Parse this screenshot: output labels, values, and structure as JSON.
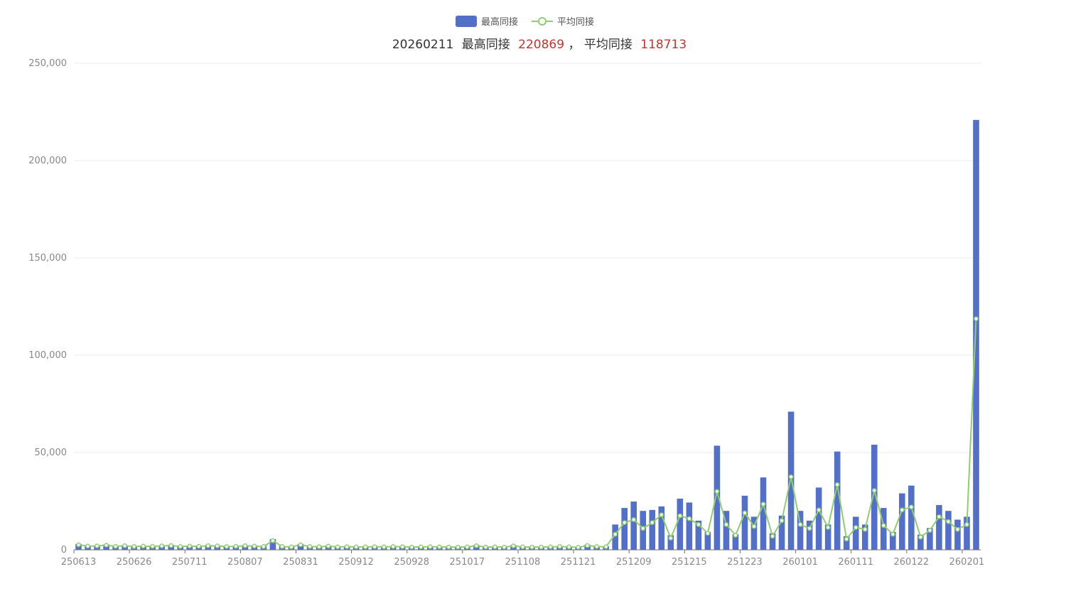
{
  "legend": {
    "bar_label": "最高同接",
    "line_label": "平均同接"
  },
  "title": {
    "date": "20260211",
    "max_label": "最高同接",
    "max_value": "220869",
    "separator": "，",
    "avg_label": "平均同接",
    "avg_value": "118713"
  },
  "colors": {
    "bar": "#5470c6",
    "line": "#91cc75",
    "highlight": "#c23531",
    "grid": "#e8ebf3",
    "axis": "#6e7079"
  },
  "chart_data": {
    "type": "bar",
    "title": "20260211 最高同接 220869，平均同接 118713",
    "ylim": [
      0,
      250000
    ],
    "y_ticks": [
      "0",
      "50,000",
      "100,000",
      "150,000",
      "200,000",
      "250,000"
    ],
    "x_tick_labels": [
      {
        "index": 0,
        "label": "250613"
      },
      {
        "index": 6,
        "label": "250626"
      },
      {
        "index": 12,
        "label": "250711"
      },
      {
        "index": 18,
        "label": "250807"
      },
      {
        "index": 24,
        "label": "250831"
      },
      {
        "index": 30,
        "label": "250912"
      },
      {
        "index": 36,
        "label": "250928"
      },
      {
        "index": 42,
        "label": "251017"
      },
      {
        "index": 48,
        "label": "251108"
      },
      {
        "index": 54,
        "label": "251121"
      },
      {
        "index": 60,
        "label": "251209"
      },
      {
        "index": 66,
        "label": "251215"
      },
      {
        "index": 72,
        "label": "251223"
      },
      {
        "index": 78,
        "label": "260101"
      },
      {
        "index": 84,
        "label": "260111"
      },
      {
        "index": 90,
        "label": "260122"
      },
      {
        "index": 96,
        "label": "260201"
      }
    ],
    "grid": true,
    "legend_position": "top-center",
    "series": [
      {
        "name": "最高同接",
        "type": "bar",
        "values": [
          3000,
          2200,
          2300,
          2800,
          2100,
          2400,
          2000,
          2200,
          2100,
          2300,
          2600,
          2000,
          2200,
          2100,
          2500,
          2300,
          2000,
          2100,
          2400,
          2200,
          2000,
          5500,
          2000,
          1800,
          3000,
          2000,
          1900,
          2200,
          1800,
          1900,
          1800,
          1800,
          1900,
          1800,
          2000,
          1900,
          1700,
          1800,
          1900,
          1800,
          1700,
          1700,
          1800,
          2500,
          1700,
          1800,
          1700,
          2400,
          1800,
          1700,
          1700,
          1800,
          2000,
          1800,
          1600,
          2600,
          2000,
          1900,
          13000,
          21500,
          24800,
          20000,
          20500,
          22300,
          7500,
          26300,
          24300,
          15000,
          9200,
          53500,
          20000,
          8000,
          27800,
          17000,
          37200,
          8500,
          17600,
          71000,
          20000,
          15000,
          32000,
          13000,
          50500,
          7000,
          17000,
          13000,
          54000,
          21500,
          9200,
          29000,
          33000,
          7800,
          11200,
          23000,
          20000,
          15500,
          17000,
          220869
        ],
        "dates": []
      },
      {
        "name": "平均同接",
        "type": "line",
        "values": [
          2600,
          1900,
          2000,
          2400,
          1800,
          2100,
          1700,
          1900,
          1800,
          2000,
          2200,
          1700,
          1900,
          1800,
          2100,
          2000,
          1700,
          1800,
          2100,
          1900,
          1700,
          4700,
          1700,
          1500,
          2600,
          1700,
          1600,
          1900,
          1500,
          1600,
          1500,
          1500,
          1600,
          1500,
          1700,
          1600,
          1400,
          1500,
          1600,
          1500,
          1400,
          1400,
          1500,
          2100,
          1400,
          1500,
          1400,
          2000,
          1500,
          1400,
          1400,
          1500,
          1700,
          1500,
          1300,
          2200,
          1700,
          1600,
          8000,
          14000,
          15500,
          11000,
          14000,
          18000,
          6000,
          17500,
          16000,
          13000,
          8500,
          30000,
          13000,
          7500,
          19000,
          12000,
          23500,
          7000,
          15000,
          37500,
          13000,
          11000,
          20500,
          11500,
          33500,
          5500,
          11500,
          10500,
          30500,
          12500,
          8000,
          20500,
          22000,
          6500,
          10000,
          17000,
          14500,
          10500,
          13000,
          118713
        ]
      }
    ]
  }
}
